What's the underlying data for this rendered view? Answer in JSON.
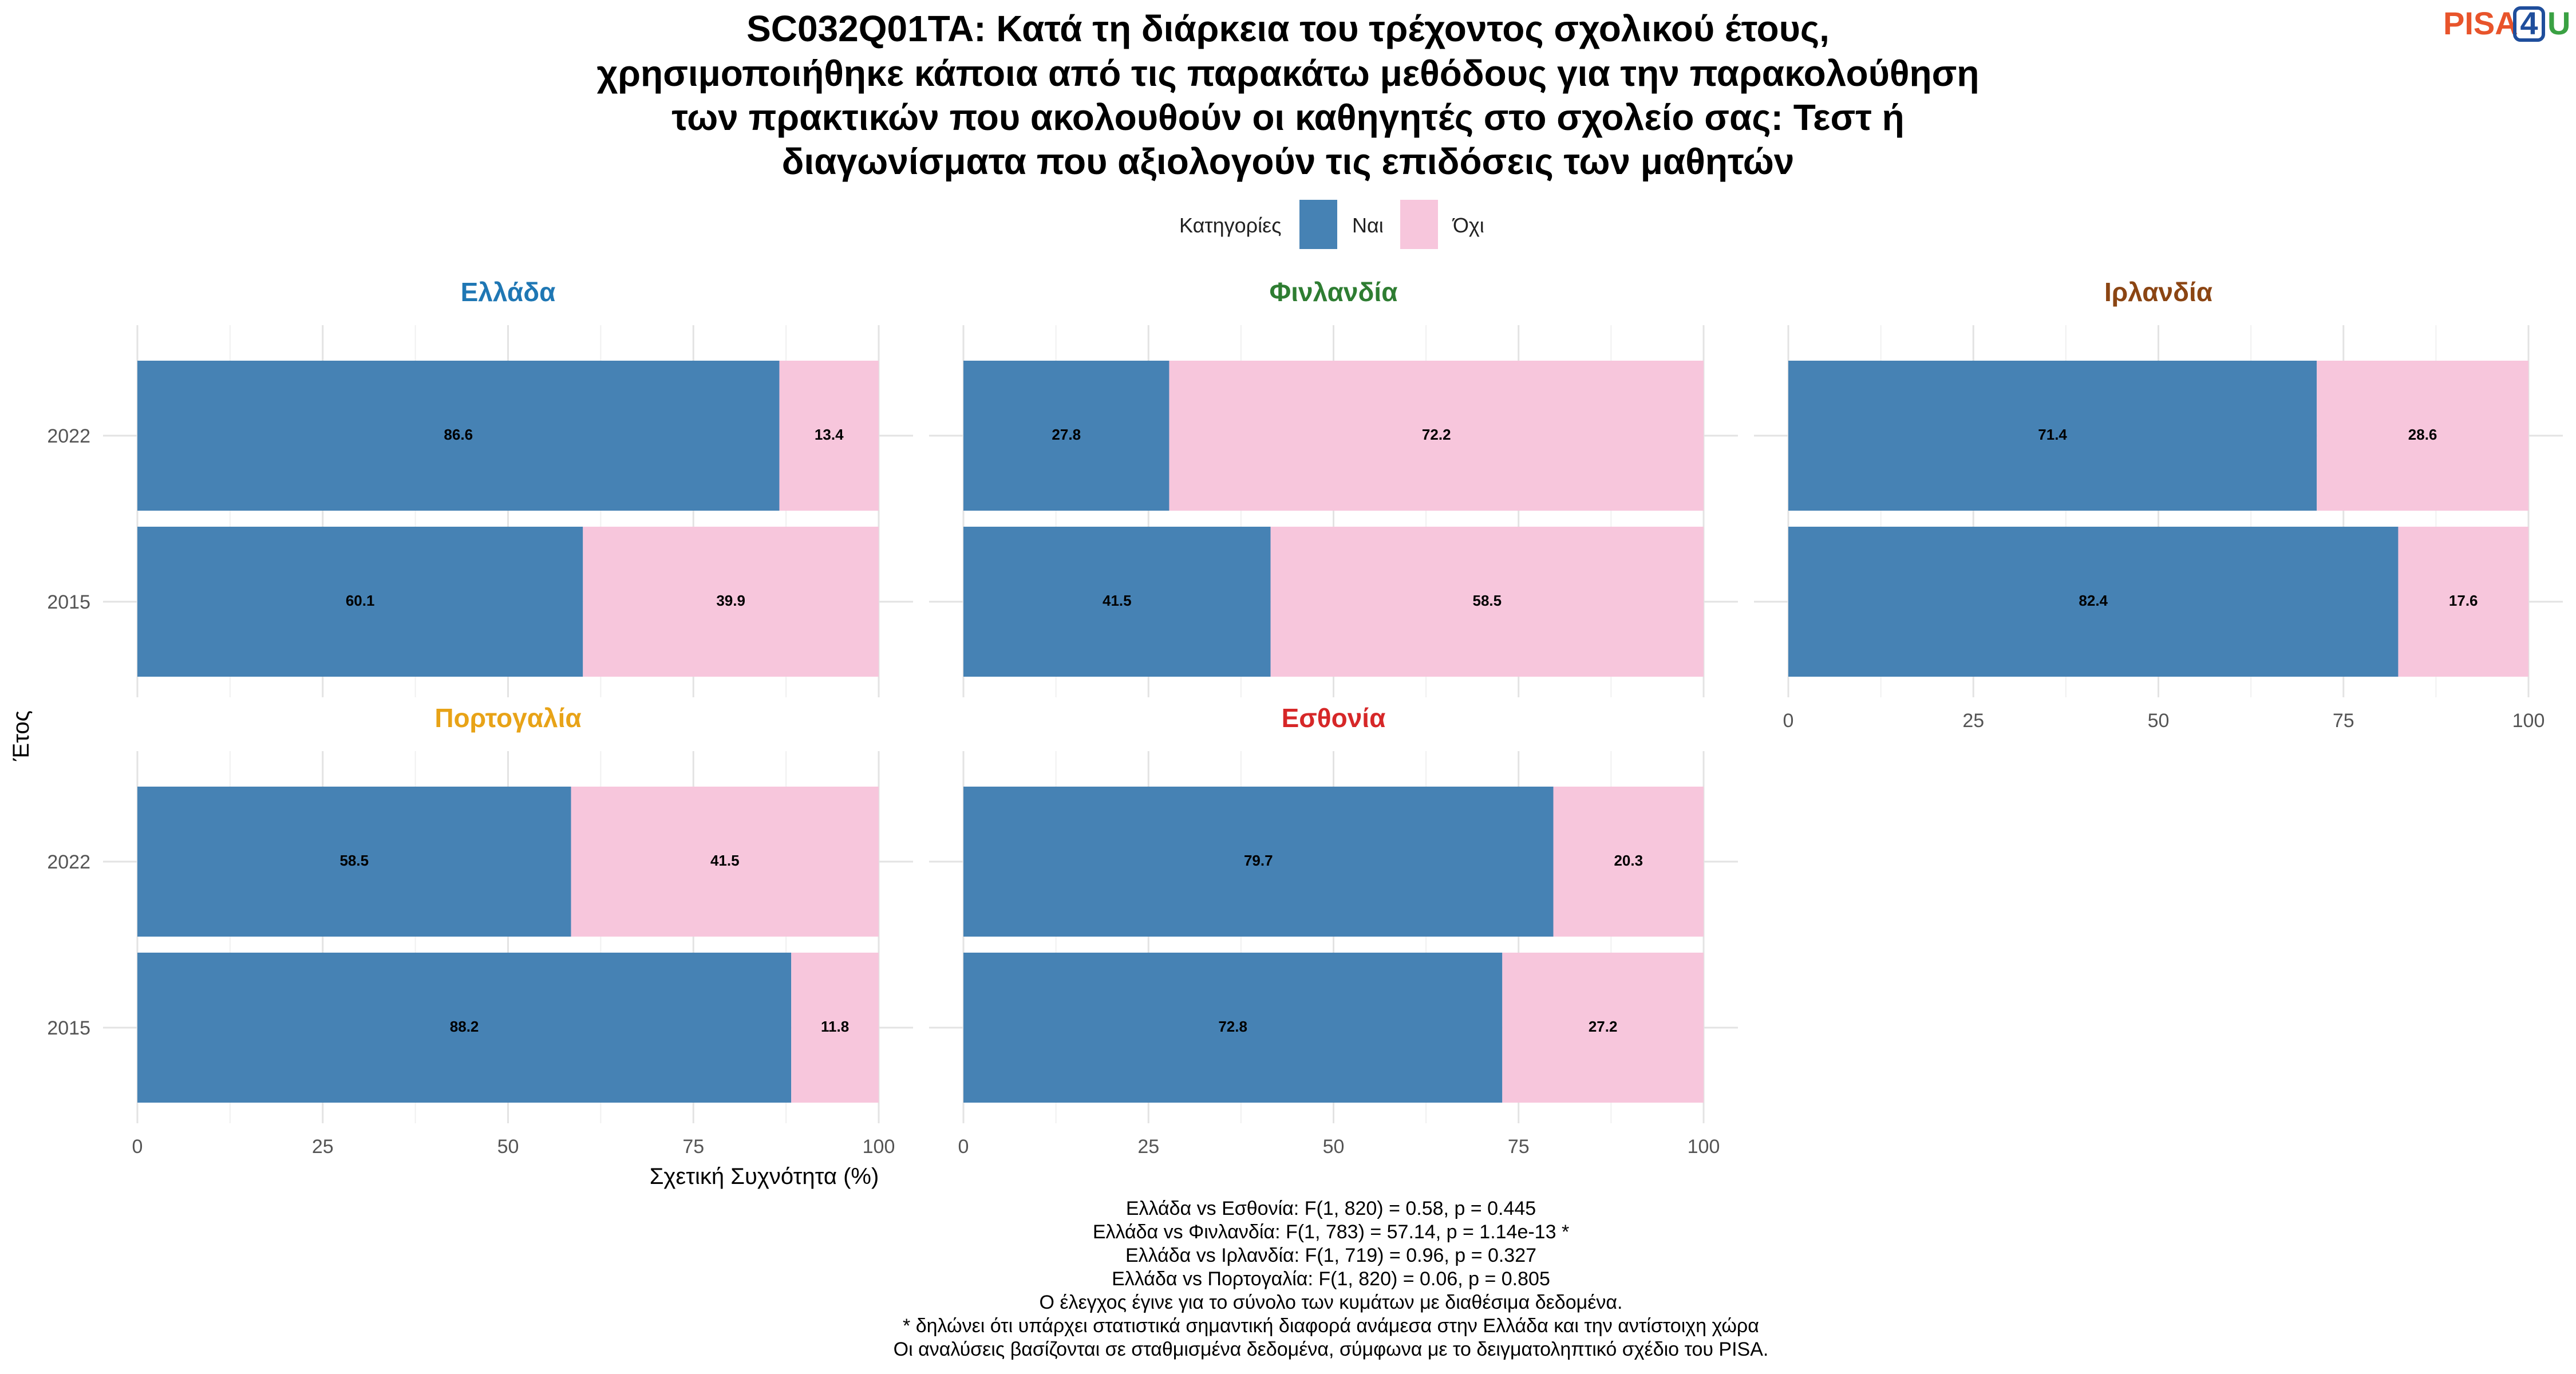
{
  "title_lines": [
    "SC032Q01TA: Κατά τη διάρκεια του τρέχοντος σχολικού έτους,",
    "χρησιμοποιήθηκε κάποια από τις παρακάτω μεθόδους για την παρακολούθηση",
    "των πρακτικών που ακολουθούν οι καθηγητές στο σχολείο σας: Τεστ ή",
    "διαγωνίσματα που αξιολογούν τις επιδόσεις των μαθητών"
  ],
  "logo": {
    "part1": "PISA",
    "part2": "4",
    "part3": "U",
    "color1": "#e8542b",
    "color2": "#1f4e9c",
    "color3": "#3aa143"
  },
  "legend": {
    "title": "Κατηγορίες",
    "items": [
      {
        "label": "Ναι",
        "color": "#4682b4"
      },
      {
        "label": "Όχι",
        "color": "#f7c6dc"
      }
    ]
  },
  "chart_data": {
    "type": "bar",
    "orientation": "horizontal",
    "stacked": true,
    "xlabel": "Σχετική Συχνότητα (%)",
    "ylabel": "Έτος",
    "xlim": [
      0,
      100
    ],
    "x_ticks": [
      0,
      25,
      50,
      75,
      100
    ],
    "categories": [
      "2022",
      "2015"
    ],
    "series_names": [
      "Ναι",
      "Όχι"
    ],
    "colors": {
      "Ναι": "#4682b4",
      "Όχι": "#f7c6dc"
    },
    "panels": [
      {
        "name": "Ελλάδα",
        "title_color": "#1f77b4",
        "rows": [
          {
            "year": "2022",
            "yes": 86.6,
            "no": 13.4
          },
          {
            "year": "2015",
            "yes": 60.1,
            "no": 39.9
          }
        ]
      },
      {
        "name": "Φινλανδία",
        "title_color": "#2e7d32",
        "rows": [
          {
            "year": "2022",
            "yes": 27.8,
            "no": 72.2
          },
          {
            "year": "2015",
            "yes": 41.5,
            "no": 58.5
          }
        ]
      },
      {
        "name": "Ιρλανδία",
        "title_color": "#8b4513",
        "rows": [
          {
            "year": "2022",
            "yes": 71.4,
            "no": 28.6
          },
          {
            "year": "2015",
            "yes": 82.4,
            "no": 17.6
          }
        ]
      },
      {
        "name": "Πορτογαλία",
        "title_color": "#e8a317",
        "rows": [
          {
            "year": "2022",
            "yes": 58.5,
            "no": 41.5
          },
          {
            "year": "2015",
            "yes": 88.2,
            "no": 11.8
          }
        ]
      },
      {
        "name": "Εσθονία",
        "title_color": "#d62728",
        "rows": [
          {
            "year": "2022",
            "yes": 79.7,
            "no": 20.3
          },
          {
            "year": "2015",
            "yes": 72.8,
            "no": 27.2
          }
        ]
      }
    ]
  },
  "notes": [
    "Ελλάδα vs Εσθονία: F(1, 820) = 0.58, p = 0.445",
    "Ελλάδα vs Φινλανδία: F(1, 783) = 57.14, p = 1.14e-13 *",
    "Ελλάδα vs Ιρλανδία: F(1, 719) = 0.96, p = 0.327",
    "Ελλάδα vs Πορτογαλία: F(1, 820) = 0.06, p = 0.805",
    "Ο έλεγχος έγινε για το σύνολο των κυμάτων με διαθέσιμα δεδομένα.",
    "* δηλώνει ότι υπάρχει στατιστικά σημαντική διαφορά ανάμεσα στην Ελλάδα και την αντίστοιχη χώρα",
    "Οι αναλύσεις βασίζονται σε σταθμισμένα δεδομένα, σύμφωνα με το δειγματοληπτικό σχέδιο του PISA."
  ]
}
